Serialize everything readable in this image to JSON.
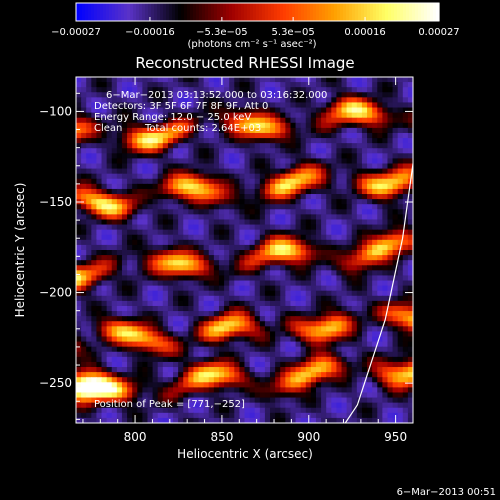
{
  "chart_data": {
    "type": "heatmap",
    "title": "Reconstructed RHESSI Image",
    "xlabel": "Heliocentric X (arcsec)",
    "ylabel": "Heliocentric Y (arcsec)",
    "xlim": [
      766,
      960
    ],
    "ylim": [
      -272,
      -81
    ],
    "x_ticks": [
      800,
      850,
      900,
      950
    ],
    "y_ticks": [
      -100,
      -150,
      -200,
      -250
    ],
    "x_tick_labels": [
      "800",
      "850",
      "900",
      "950"
    ],
    "y_tick_labels": [
      "−100",
      "−150",
      "−200",
      "−250"
    ],
    "colorbar": {
      "range": [
        -0.00027,
        0.00027
      ],
      "ticks": [
        -0.00027,
        -0.00016,
        -5.3e-05,
        5.3e-05,
        0.00016,
        0.00027
      ],
      "tick_labels": [
        "−0.00027",
        "−0.00016",
        "−5.3e−05",
        "5.3e−05",
        "0.00016",
        "0.00027"
      ],
      "colors": [
        "#0000ff",
        "#5a32c8",
        "#000000",
        "#a00000",
        "#ff3c00",
        "#ffa000",
        "#ffff64",
        "#ffffff"
      ],
      "unit_label": "(photons cm⁻² s⁻¹ asec⁻²)"
    },
    "annotations": {
      "time_range": "6−Mar−2013 03:13:52.000 to 03:16:32.000",
      "detectors": "Detectors: 3F 5F 6F 7F 8F 9F, Att 0",
      "energy_range": "Energy Range: 12.0 − 25.0 keV",
      "algorithm": "Clean",
      "total_counts": "Total counts: 2.64E+03",
      "peak_position": "Position of Peak = [771,−252]"
    },
    "limb_curve": [
      [
        962,
        -115
      ],
      [
        954,
        -170
      ],
      [
        944,
        -215
      ],
      [
        928,
        -262
      ],
      [
        921,
        -272
      ]
    ],
    "grid": false,
    "bright_bands_y": [
      -108,
      -143,
      -182,
      -221,
      -248
    ],
    "peak": [
      771,
      -252
    ]
  },
  "footer": {
    "timestamp": "6−Mar−2013 00:51"
  }
}
